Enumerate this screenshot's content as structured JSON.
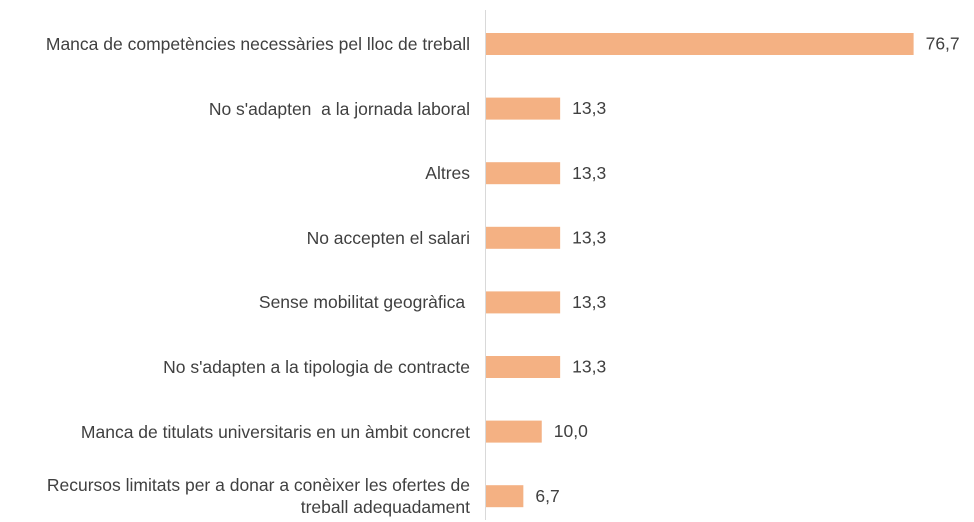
{
  "chart_data": {
    "type": "bar",
    "orientation": "horizontal",
    "categories": [
      "Manca de competències necessàries pel lloc de treball",
      "No s'adapten  a la jornada laboral",
      "Altres",
      "No accepten el salari",
      "Sense mobilitat geogràfica ",
      "No s'adapten a la tipologia de contracte",
      "Manca de titulats universitaris en un àmbit concret",
      "Recursos limitats per a donar a conèixer les ofertes de treball adequadament"
    ],
    "values": [
      76.7,
      13.3,
      13.3,
      13.3,
      13.3,
      13.3,
      10.0,
      6.7
    ],
    "value_labels": [
      "76,7",
      "13,3",
      "13,3",
      "13,3",
      "13,3",
      "13,3",
      "10,0",
      "6,7"
    ],
    "color": "#f4b183",
    "xlim": [
      0,
      80
    ]
  }
}
